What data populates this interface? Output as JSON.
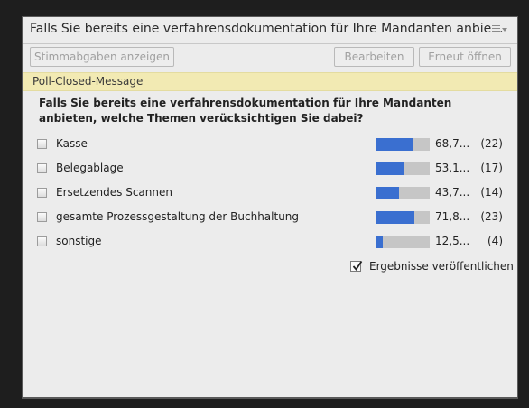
{
  "window": {
    "title": "Falls Sie bereits eine verfahrensdokumentation für Ihre Mandanten anbie...",
    "menu_icon": "hamburger-menu-icon"
  },
  "toolbar": {
    "votes_label": "Stimmabgaben anzeigen",
    "edit_label": "Bearbeiten",
    "reopen_label": "Erneut öffnen"
  },
  "message": {
    "text": "Poll-Closed-Message"
  },
  "poll": {
    "question": "Falls Sie bereits eine verfahrensdokumentation für Ihre Mandanten anbieten, welche Themen verücksichtigen Sie dabei?",
    "options": [
      {
        "label": "Kasse",
        "percent_text": "68,7...",
        "count_text": "(22)",
        "fraction": 0.687
      },
      {
        "label": "Belegablage",
        "percent_text": "53,1...",
        "count_text": "(17)",
        "fraction": 0.531
      },
      {
        "label": "Ersetzendes Scannen",
        "percent_text": "43,7...",
        "count_text": "(14)",
        "fraction": 0.437
      },
      {
        "label": "gesamte Prozessgestaltung der Buchhaltung",
        "percent_text": "71,8...",
        "count_text": "(23)",
        "fraction": 0.718
      },
      {
        "label": "sonstige",
        "percent_text": "12,5...",
        "count_text": "(4)",
        "fraction": 0.125
      }
    ],
    "publish_label": "Ergebnisse veröffentlichen",
    "publish_checked": true
  },
  "colors": {
    "bar_fill": "#3a6fd0",
    "bar_track": "#c6c6c6",
    "message_bg": "#f2eab3"
  }
}
